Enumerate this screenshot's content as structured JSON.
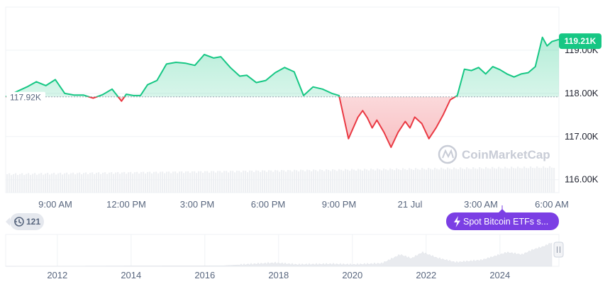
{
  "chart_data": {
    "type": "line",
    "title": "",
    "baseline_value": 117920,
    "baseline_label": "117.92K",
    "current_value": 119210,
    "current_label": "119.21K",
    "y_ticks": [
      "116.00K",
      "117.00K",
      "118.00K",
      "119.00K"
    ],
    "y_tick_values": [
      116000,
      117000,
      118000,
      119000
    ],
    "ylim": [
      115700,
      120000
    ],
    "x_ticks": [
      "9:00 AM",
      "12:00 PM",
      "3:00 PM",
      "6:00 PM",
      "9:00 PM",
      "21 Jul",
      "3:00 AM",
      "6:00 AM"
    ],
    "x_tick_hours": [
      9,
      12,
      15,
      18,
      21,
      24,
      27,
      30
    ],
    "xlim_hours": [
      6.9,
      30.3
    ],
    "series": [
      {
        "x_hours": [
          6.9,
          7.4,
          7.8,
          8.2,
          8.6,
          9.0,
          9.4,
          9.8,
          10.2,
          10.6,
          11.0,
          11.4,
          11.8,
          12.0,
          12.3,
          12.6,
          12.9,
          13.3,
          13.7,
          14.1,
          14.5,
          14.9,
          15.3,
          15.7,
          16.0,
          16.4,
          16.8,
          17.1,
          17.5,
          17.9,
          18.3,
          18.7,
          19.1,
          19.5,
          19.9,
          20.3,
          20.7,
          21.0,
          21.4,
          21.8,
          22.0,
          22.2,
          22.4,
          22.6,
          22.9,
          23.2,
          23.5,
          23.8,
          24.0,
          24.2,
          24.5,
          24.8,
          25.1,
          25.4,
          25.7,
          26.0,
          26.3,
          26.6,
          26.9,
          27.2,
          27.5,
          27.8,
          28.1,
          28.4,
          28.7,
          29.0,
          29.3,
          29.6,
          29.8,
          30.0,
          30.3
        ],
        "y": [
          117920,
          118050,
          118150,
          118270,
          118180,
          118320,
          118000,
          117960,
          117960,
          117890,
          117970,
          118100,
          117820,
          117980,
          117950,
          117950,
          118200,
          118300,
          118680,
          118720,
          118700,
          118650,
          118900,
          118820,
          118850,
          118600,
          118400,
          118420,
          118250,
          118300,
          118480,
          118600,
          118500,
          117950,
          118150,
          118100,
          118000,
          117950,
          116950,
          117450,
          117600,
          117430,
          117200,
          117380,
          117100,
          116750,
          117100,
          117350,
          117200,
          117450,
          117300,
          116950,
          117200,
          117500,
          117850,
          117950,
          118560,
          118530,
          118600,
          118450,
          118620,
          118550,
          118450,
          118380,
          118450,
          118480,
          118620,
          119300,
          119100,
          119200,
          119250
        ]
      }
    ],
    "up_color": "#16c784",
    "down_color": "#ea3943",
    "volume_note": "volume bars shown as light grey area",
    "events_badge": "121",
    "event_label": "Spot Bitcoin ETFs s...",
    "watermark": "CoinMarketCap",
    "overview": {
      "x_ticks": [
        "2012",
        "2014",
        "2016",
        "2018",
        "2020",
        "2022",
        "2024"
      ],
      "years": [
        2012,
        2014,
        2016,
        2018,
        2020,
        2022,
        2024
      ],
      "xlim_years": [
        2010.6,
        2025.6
      ]
    }
  }
}
